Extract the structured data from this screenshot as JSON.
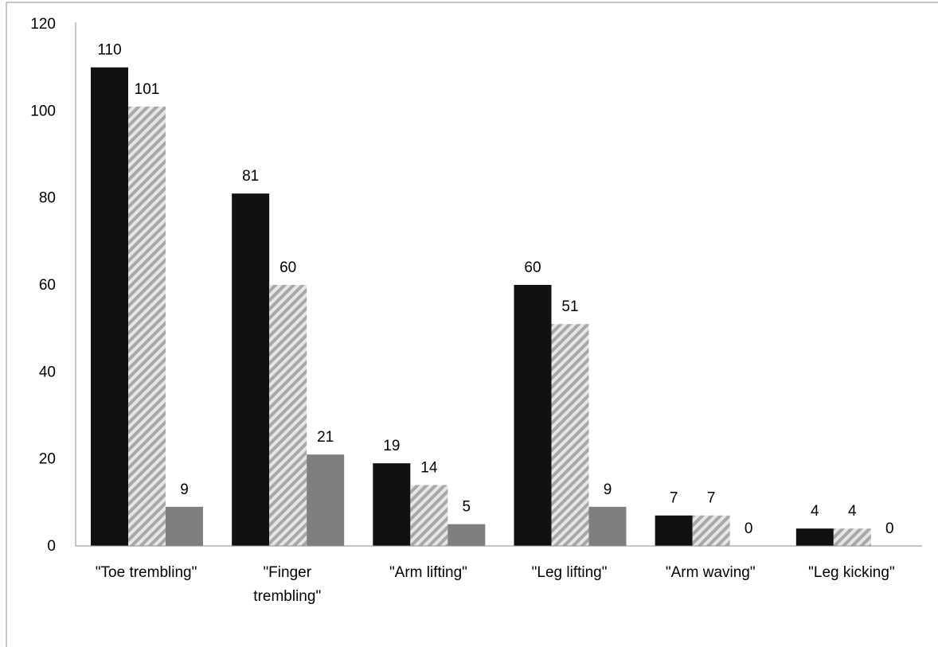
{
  "chart_data": {
    "type": "bar",
    "title": "",
    "xlabel": "",
    "ylabel": "",
    "ylim": [
      0,
      120
    ],
    "y_ticks": [
      "0",
      "20",
      "40",
      "60",
      "80",
      "100",
      "120"
    ],
    "grid": false,
    "legend": "none",
    "categories": [
      [
        "\"Toe trembling\""
      ],
      [
        "\"Finger",
        "trembling\""
      ],
      [
        "\"Arm lifting\""
      ],
      [
        "\"Leg lifting\""
      ],
      [
        "\"Arm waving\""
      ],
      [
        "\"Leg kicking\""
      ]
    ],
    "series": [
      {
        "values": [
          110,
          81,
          19,
          60,
          7,
          4
        ],
        "fill": "solid",
        "color": "#111111"
      },
      {
        "values": [
          101,
          60,
          14,
          51,
          7,
          4
        ],
        "fill": "hatched",
        "color": "#b0b0b0"
      },
      {
        "values": [
          9,
          21,
          5,
          9,
          0,
          0
        ],
        "fill": "solid",
        "color": "#7f7f7f"
      }
    ]
  }
}
